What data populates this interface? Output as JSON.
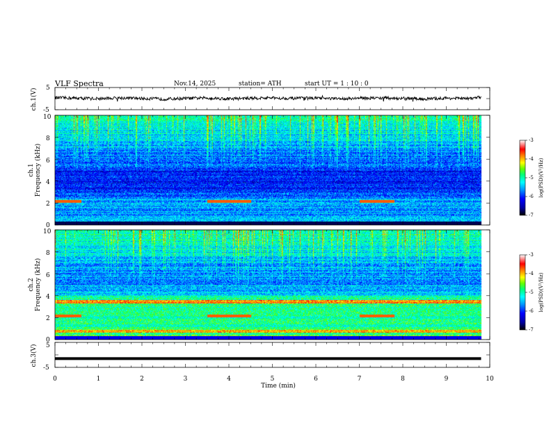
{
  "header": {
    "title": "VLF  Spectra",
    "date": "Nov.14, 2025",
    "station": "station= ATH",
    "start_ut": "start  UT  =    1  : 10 : 0"
  },
  "chart_data": [
    {
      "type": "line",
      "name": "ch1-waveform",
      "ylabel": "ch.1(V)",
      "ylim": [
        -5,
        5
      ],
      "yticks": [
        "5",
        "-5"
      ],
      "xlim": [
        0,
        10
      ],
      "x": [
        0,
        0.5,
        1,
        1.5,
        2,
        2.5,
        3,
        3.5,
        4,
        4.5,
        5,
        5.5,
        6,
        6.5,
        7,
        7.5,
        8,
        8.5,
        9,
        9.5,
        9.8
      ],
      "values": [
        0.4,
        0.2,
        0.0,
        0.3,
        0.1,
        -0.2,
        0.1,
        0.3,
        -0.1,
        0.2,
        0.3,
        0.1,
        0.2,
        -0.1,
        0.2,
        0.3,
        0.1,
        -0.2,
        0.2,
        0.0,
        0.6
      ]
    },
    {
      "type": "heatmap",
      "name": "ch1-spectrogram",
      "ylabel": "ch.1\nFrequency (kHz)",
      "ylim": [
        0,
        10
      ],
      "yticks": [
        "10",
        "8",
        "6",
        "4",
        "2",
        "0"
      ],
      "xlim": [
        0,
        10
      ],
      "data_extent_min": 9.8,
      "colorbar": {
        "label": "log(PSD)(V²/Hz)",
        "range": [
          -7,
          -3
        ],
        "ticks": [
          "-3",
          "-4",
          "-5",
          "-6",
          "-7"
        ]
      }
    },
    {
      "type": "heatmap",
      "name": "ch2-spectrogram",
      "ylabel": "ch.2\nFrequency (kHz)",
      "ylim": [
        0,
        10
      ],
      "yticks": [
        "10",
        "8",
        "6",
        "4",
        "2",
        "0"
      ],
      "xlim": [
        0,
        10
      ],
      "data_extent_min": 9.8,
      "colorbar": {
        "label": "log(PSD)(V²/Hz)",
        "range": [
          -7,
          -3
        ],
        "ticks": [
          "-3",
          "-4",
          "-5",
          "-6",
          "-7"
        ]
      }
    },
    {
      "type": "line",
      "name": "ch3-waveform",
      "ylabel": "ch.3(V)",
      "ylim": [
        -5,
        5
      ],
      "yticks": [
        "5",
        "-5"
      ],
      "xlim": [
        0,
        10
      ],
      "x": [
        0,
        9.8
      ],
      "values": [
        -1.5,
        -1.5
      ]
    }
  ],
  "xaxis": {
    "label": "Time  (min)",
    "ticks": [
      "0",
      "1",
      "2",
      "3",
      "4",
      "5",
      "6",
      "7",
      "8",
      "9",
      "10"
    ]
  },
  "colors": {
    "colormap": [
      "#000000",
      "#0000a0",
      "#0000ff",
      "#0096ff",
      "#00ffff",
      "#00ff78",
      "#64ff00",
      "#ffff00",
      "#ff7800",
      "#ff0000",
      "#ffffff"
    ]
  }
}
